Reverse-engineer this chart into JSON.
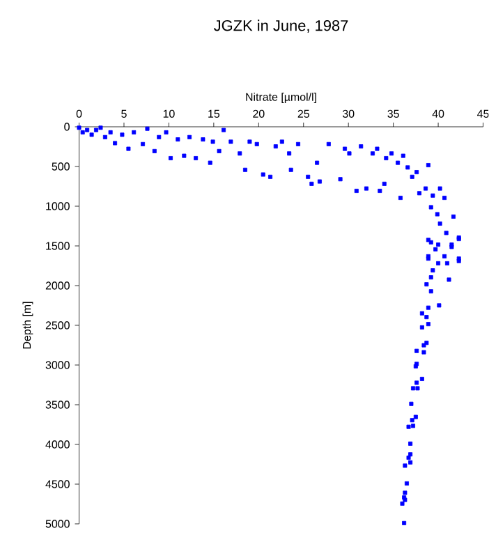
{
  "chart_data": {
    "type": "scatter",
    "title": "JGZK in June, 1987",
    "xlabel": "Nitrate [µmol/l]",
    "ylabel": "Depth [m]",
    "marker": "square",
    "grid": false,
    "series": [
      {
        "color": "#0000ff",
        "x": [
          0,
          0.4,
          0.9,
          1.4,
          1.9,
          2.4,
          2.9,
          3.5,
          4,
          4.8,
          5.5,
          6.1,
          7.1,
          7.6,
          8.4,
          8.9,
          9.7,
          10.2,
          11,
          11.7,
          12.3,
          13,
          13.8,
          14.6,
          14.9,
          15.6,
          16.1,
          16.9,
          17.9,
          18.5,
          19,
          19.8,
          20.5,
          21.3,
          21.9,
          22.6,
          23.4,
          23.6,
          24.4,
          25.5,
          25.9,
          26.5,
          26.8,
          27.8,
          29.1,
          29.6,
          30.1,
          30.9,
          31.4,
          32,
          32.7,
          33.2,
          33.5,
          34,
          34.2,
          34.8,
          35.5,
          35.8,
          36.1,
          36.6,
          37.1,
          37.6,
          37.9,
          38.9,
          38.6,
          39.4,
          39.2,
          40.2,
          39.9,
          40.7,
          41.7,
          40.2,
          42.3,
          40.9,
          39.2,
          41.5,
          39.7,
          42.3,
          38.9,
          40.7,
          38.9,
          40.0,
          42.3,
          41.5,
          38.9,
          42.3,
          40.0,
          39.4,
          41.0,
          39.2,
          41.2,
          38.7,
          39.2,
          40.1,
          38.9,
          38.2,
          38.7,
          38.9,
          38.2,
          38.7,
          38.4,
          37.6,
          38.4,
          37.6,
          37.5,
          37.6,
          38.2,
          37.2,
          37.7,
          37.0,
          37.5,
          37.1,
          36.7,
          37.2,
          36.9,
          36.9,
          36.7,
          36.9,
          36.3,
          36.5,
          36.3,
          36.2,
          36.3,
          36.0,
          36.2
        ],
        "values": [
          12,
          70,
          41,
          100,
          41,
          12,
          130,
          70,
          206,
          100,
          277,
          70,
          218,
          24,
          306,
          130,
          70,
          395,
          159,
          365,
          130,
          395,
          159,
          453,
          188,
          306,
          41,
          188,
          336,
          542,
          188,
          218,
          601,
          630,
          247,
          188,
          336,
          542,
          218,
          630,
          718,
          453,
          689,
          218,
          660,
          277,
          336,
          807,
          247,
          777,
          336,
          277,
          807,
          718,
          395,
          336,
          453,
          895,
          365,
          512,
          630,
          571,
          836,
          483,
          777,
          866,
          1013,
          777,
          1101,
          895,
          1131,
          1219,
          1395,
          1337,
          1455,
          1513,
          1543,
          1660,
          1660,
          1631,
          1425,
          1484,
          1413,
          1484,
          1631,
          1690,
          1719,
          1808,
          1719,
          1896,
          1925,
          1984,
          2072,
          2249,
          2278,
          2349,
          2396,
          2484,
          2526,
          2721,
          2751,
          2822,
          2839,
          2986,
          3016,
          3223,
          3175,
          3293,
          3293,
          3489,
          3654,
          3695,
          3778,
          3766,
          3990,
          4125,
          4167,
          4226,
          4267,
          4491,
          4609,
          4668,
          4698,
          4745,
          4990
        ]
      }
    ],
    "xlim": [
      0,
      45
    ],
    "xticks": [
      0,
      5,
      10,
      15,
      20,
      25,
      30,
      35,
      40,
      45
    ],
    "ylim": [
      5000,
      0
    ],
    "yticks": [
      0,
      500,
      1000,
      1500,
      2000,
      2500,
      3000,
      3500,
      4000,
      4500,
      5000
    ]
  }
}
